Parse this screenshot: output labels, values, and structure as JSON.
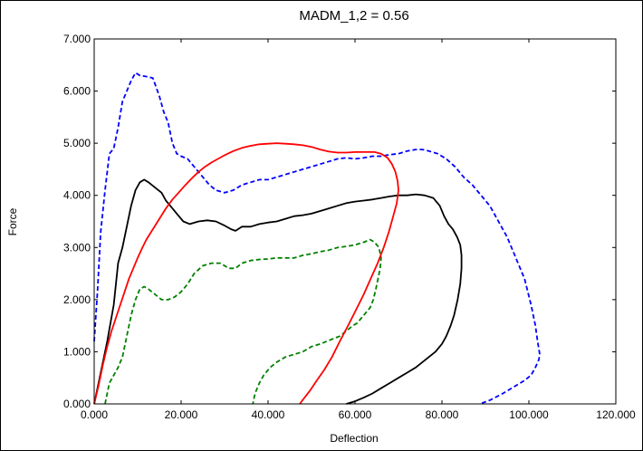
{
  "chart_data": {
    "type": "line",
    "title": "MADM_1,2 = 0.56",
    "xlabel": "Deflection",
    "ylabel": "Force",
    "xlim": [
      0,
      120
    ],
    "ylim": [
      0,
      7
    ],
    "x_ticks": [
      "0.000",
      "20.000",
      "40.000",
      "60.000",
      "80.000",
      "100.000",
      "120.000"
    ],
    "y_ticks": [
      "0.000",
      "1.000",
      "2.000",
      "3.000",
      "4.000",
      "5.000",
      "6.000",
      "7.000"
    ],
    "grid": false,
    "legend": "none",
    "series": [
      {
        "color": "#0000ff",
        "style": "dashed",
        "x": [
          0,
          0.8,
          1.5,
          2.5,
          3.5,
          4.5,
          5.5,
          6.5,
          7.5,
          8.5,
          9.5,
          10.5,
          12,
          13.5,
          15,
          16,
          17,
          18,
          19,
          20,
          21.5,
          23,
          25,
          26.5,
          28,
          30,
          32,
          34,
          36,
          38,
          40,
          42,
          44,
          46,
          48,
          50,
          52,
          54,
          56,
          58,
          60,
          62,
          64,
          66,
          68,
          70,
          72,
          74,
          75.5,
          77,
          79,
          81,
          83,
          85,
          87,
          89,
          91,
          93,
          95,
          97,
          99,
          100.5,
          101.5,
          102,
          102.5,
          102.3,
          101.5,
          100.5,
          99,
          97,
          94,
          91,
          88.7
        ],
        "y": [
          1.2,
          2.2,
          3.3,
          4.1,
          4.8,
          4.9,
          5.3,
          5.8,
          6.0,
          6.2,
          6.35,
          6.3,
          6.28,
          6.25,
          5.9,
          5.6,
          5.4,
          5.0,
          4.8,
          4.75,
          4.7,
          4.55,
          4.35,
          4.2,
          4.1,
          4.05,
          4.1,
          4.2,
          4.25,
          4.3,
          4.3,
          4.35,
          4.4,
          4.45,
          4.5,
          4.55,
          4.6,
          4.65,
          4.7,
          4.72,
          4.7,
          4.72,
          4.75,
          4.75,
          4.78,
          4.8,
          4.85,
          4.88,
          4.88,
          4.85,
          4.8,
          4.7,
          4.55,
          4.35,
          4.2,
          4.0,
          3.8,
          3.5,
          3.2,
          2.8,
          2.4,
          1.9,
          1.5,
          1.2,
          0.95,
          0.85,
          0.7,
          0.55,
          0.45,
          0.35,
          0.2,
          0.07,
          0.0
        ]
      },
      {
        "color": "#000000",
        "style": "solid",
        "x": [
          0,
          1.5,
          3,
          4.5,
          5.5,
          6.5,
          7.5,
          8.5,
          9.5,
          10.5,
          11.5,
          12.5,
          14,
          15.5,
          16.5,
          17.5,
          19,
          20.5,
          22,
          24,
          26,
          28,
          30,
          31.5,
          32.5,
          34,
          36,
          38,
          40,
          42,
          44,
          46,
          48,
          50,
          52,
          54,
          56,
          58,
          60,
          62,
          64,
          66,
          68,
          70,
          72,
          74,
          76,
          78,
          79.5,
          80.5,
          81.5,
          82.5,
          83.5,
          84.2,
          84.5,
          84.5,
          84.2,
          83.6,
          82.8,
          82,
          81,
          80,
          78.5,
          77,
          75.5,
          74,
          72,
          70,
          68,
          66,
          64,
          62,
          60,
          58
        ],
        "y": [
          0,
          0.6,
          1.2,
          1.9,
          2.7,
          3.0,
          3.4,
          3.8,
          4.1,
          4.25,
          4.3,
          4.25,
          4.15,
          4.05,
          3.9,
          3.8,
          3.65,
          3.5,
          3.45,
          3.5,
          3.52,
          3.5,
          3.42,
          3.35,
          3.32,
          3.4,
          3.4,
          3.45,
          3.48,
          3.5,
          3.55,
          3.6,
          3.62,
          3.65,
          3.7,
          3.75,
          3.8,
          3.85,
          3.88,
          3.9,
          3.92,
          3.95,
          3.98,
          4.0,
          4.0,
          4.02,
          4.0,
          3.95,
          3.8,
          3.6,
          3.45,
          3.35,
          3.2,
          3.05,
          2.85,
          2.6,
          2.3,
          2.0,
          1.7,
          1.5,
          1.3,
          1.15,
          1.0,
          0.9,
          0.8,
          0.7,
          0.6,
          0.5,
          0.4,
          0.3,
          0.2,
          0.12,
          0.05,
          0.0
        ]
      },
      {
        "color": "#008000",
        "style": "dashed",
        "x": [
          2.5,
          3,
          3.5,
          4.5,
          5.5,
          6.5,
          7.5,
          8.5,
          9.5,
          10.5,
          11.5,
          12.5,
          14,
          15.5,
          17,
          18.5,
          20,
          21.5,
          23,
          25,
          27,
          29,
          31,
          32.5,
          34,
          36,
          38,
          40,
          42,
          44,
          46,
          48,
          50,
          52,
          54,
          56,
          58,
          60,
          62,
          63.5,
          64.5,
          65.5,
          66,
          65.8,
          65.3,
          64.8,
          64.2,
          63.5,
          62.5,
          61.5,
          60.5,
          59.5,
          58,
          56.5,
          55,
          53.5,
          52,
          50,
          48,
          46,
          44,
          42,
          40.5,
          39,
          38,
          37,
          36.5
        ],
        "y": [
          0.0,
          0.2,
          0.4,
          0.55,
          0.7,
          0.9,
          1.3,
          1.7,
          2.0,
          2.2,
          2.25,
          2.2,
          2.1,
          2.0,
          2.0,
          2.05,
          2.15,
          2.3,
          2.5,
          2.65,
          2.7,
          2.7,
          2.6,
          2.6,
          2.7,
          2.75,
          2.77,
          2.78,
          2.8,
          2.8,
          2.8,
          2.85,
          2.88,
          2.92,
          2.95,
          3.0,
          3.02,
          3.05,
          3.1,
          3.15,
          3.1,
          3.0,
          2.8,
          2.6,
          2.4,
          2.2,
          2.0,
          1.85,
          1.75,
          1.65,
          1.55,
          1.5,
          1.4,
          1.3,
          1.25,
          1.2,
          1.15,
          1.1,
          1.0,
          0.95,
          0.9,
          0.8,
          0.7,
          0.55,
          0.4,
          0.2,
          0.0
        ]
      },
      {
        "color": "#ff0000",
        "style": "solid",
        "x": [
          0,
          1,
          2,
          3,
          4,
          5,
          6,
          7,
          8,
          9,
          10,
          11,
          12,
          13.5,
          15,
          16.5,
          18,
          19.5,
          21,
          22.5,
          24,
          25.5,
          27,
          28.5,
          30,
          32,
          34,
          36,
          38,
          40,
          42,
          44,
          46,
          48,
          50,
          52,
          54,
          56,
          58,
          60,
          61.5,
          63,
          64.5,
          66,
          67.5,
          68.5,
          69.3,
          69.8,
          70,
          69.6,
          68.8,
          67.8,
          66.6,
          65.2,
          63.6,
          62,
          60.2,
          58.4,
          56.5,
          54.7,
          52.9,
          51.2,
          49.6,
          48.2,
          47.3
        ],
        "y": [
          0,
          0.35,
          0.75,
          1.1,
          1.4,
          1.65,
          1.9,
          2.15,
          2.4,
          2.6,
          2.8,
          2.98,
          3.15,
          3.35,
          3.55,
          3.75,
          3.92,
          4.06,
          4.2,
          4.33,
          4.45,
          4.55,
          4.63,
          4.7,
          4.77,
          4.85,
          4.91,
          4.95,
          4.98,
          4.99,
          5.0,
          4.99,
          4.98,
          4.96,
          4.93,
          4.88,
          4.84,
          4.82,
          4.82,
          4.83,
          4.83,
          4.83,
          4.83,
          4.8,
          4.72,
          4.6,
          4.45,
          4.28,
          4.1,
          3.85,
          3.6,
          3.3,
          3.0,
          2.7,
          2.4,
          2.1,
          1.8,
          1.5,
          1.2,
          0.9,
          0.65,
          0.45,
          0.25,
          0.1,
          0.0
        ]
      }
    ]
  }
}
